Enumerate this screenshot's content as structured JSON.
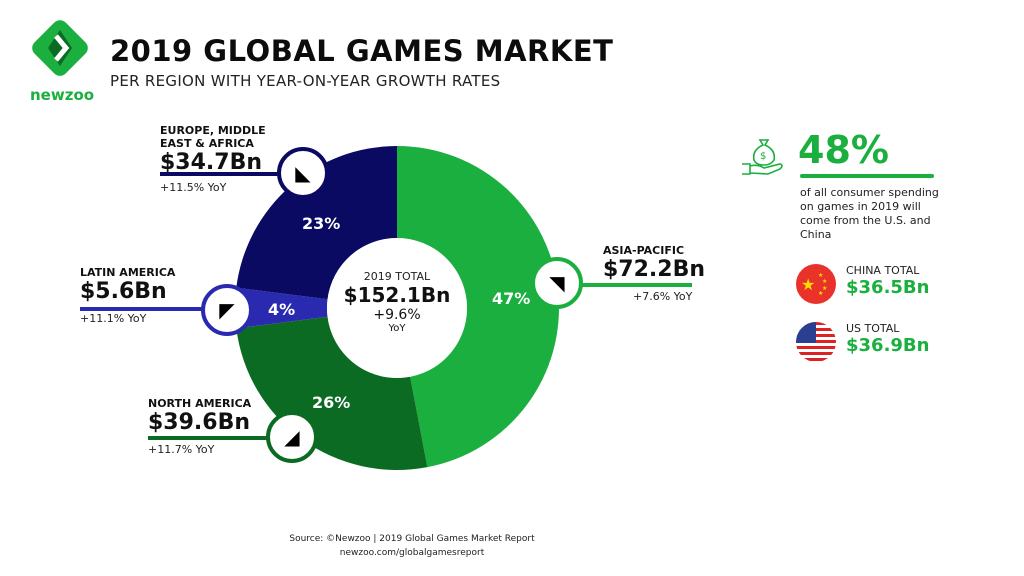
{
  "header": {
    "title": "2019 GLOBAL GAMES MARKET",
    "subtitle": "PER REGION WITH YEAR-ON-YEAR GROWTH RATES",
    "logo_text": "newzoo"
  },
  "chart_data": {
    "type": "pie",
    "title": "2019 GLOBAL GAMES MARKET",
    "center": {
      "label": "2019 TOTAL",
      "value": "$152.1Bn",
      "growth": "+9.6%",
      "growth_unit": "YoY"
    },
    "slices": [
      {
        "name": "ASIA-PACIFIC",
        "value": 72.2,
        "value_label": "$72.2Bn",
        "percent": 47,
        "percent_label": "47%",
        "yoy": "+7.6% YoY",
        "color": "#1aaf3e"
      },
      {
        "name": "NORTH AMERICA",
        "value": 39.6,
        "value_label": "$39.6Bn",
        "percent": 26,
        "percent_label": "26%",
        "yoy": "+11.7% YoY",
        "color": "#0b6b22"
      },
      {
        "name": "LATIN AMERICA",
        "value": 5.6,
        "value_label": "$5.6Bn",
        "percent": 4,
        "percent_label": "4%",
        "yoy": "+11.1% YoY",
        "color": "#2a2ab0"
      },
      {
        "name": "EUROPE, MIDDLE EAST & AFRICA",
        "name_line1": "EUROPE, MIDDLE",
        "name_line2": "EAST & AFRICA",
        "value": 34.7,
        "value_label": "$34.7Bn",
        "percent": 23,
        "percent_label": "23%",
        "yoy": "+11.5% YoY",
        "color": "#0a0a63"
      }
    ]
  },
  "side": {
    "big_stat": "48%",
    "description": "of all consumer spending on games in 2019 will come from the U.S. and China",
    "china_label": "CHINA TOTAL",
    "china_value": "$36.5Bn",
    "us_label": "US TOTAL",
    "us_value": "$36.9Bn",
    "accent": "#1aaf3e"
  },
  "footer": {
    "source": "Source: ©Newzoo | 2019 Global Games Market Report",
    "url": "newzoo.com/globalgamesreport"
  }
}
